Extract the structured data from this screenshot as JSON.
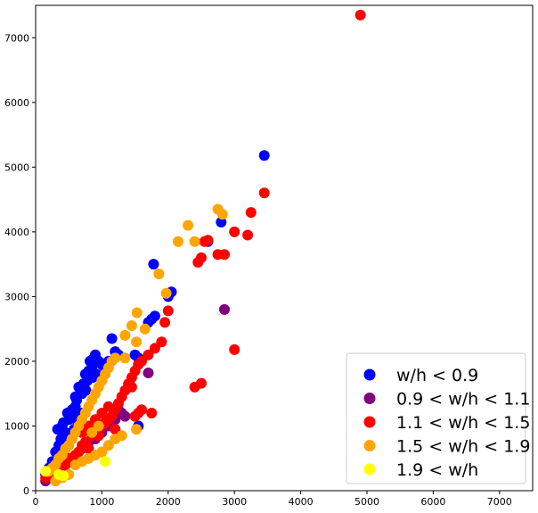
{
  "chart_data": {
    "type": "scatter",
    "title": "",
    "xlabel": "",
    "ylabel": "",
    "xlim": [
      0,
      7500
    ],
    "ylim": [
      0,
      7500
    ],
    "xticks": [
      0,
      1000,
      2000,
      3000,
      4000,
      5000,
      6000,
      7000
    ],
    "yticks": [
      0,
      1000,
      2000,
      3000,
      4000,
      5000,
      6000,
      7000
    ],
    "grid": false,
    "legend_position": "lower-right",
    "series": [
      {
        "name": "w/h < 0.9",
        "color": "#0000ff",
        "points": [
          [
            150,
            250
          ],
          [
            200,
            350
          ],
          [
            250,
            450
          ],
          [
            300,
            600
          ],
          [
            350,
            700
          ],
          [
            380,
            800
          ],
          [
            400,
            1000
          ],
          [
            450,
            900
          ],
          [
            480,
            1200
          ],
          [
            500,
            1100
          ],
          [
            550,
            1250
          ],
          [
            600,
            1300
          ],
          [
            620,
            1400
          ],
          [
            650,
            1600
          ],
          [
            700,
            1500
          ],
          [
            720,
            1650
          ],
          [
            750,
            1800
          ],
          [
            780,
            1700
          ],
          [
            800,
            1850
          ],
          [
            820,
            2000
          ],
          [
            850,
            1900
          ],
          [
            880,
            2050
          ],
          [
            900,
            2100
          ],
          [
            950,
            2000
          ],
          [
            1000,
            1950
          ],
          [
            1050,
            1900
          ],
          [
            1100,
            2000
          ],
          [
            1150,
            2350
          ],
          [
            1200,
            2150
          ],
          [
            1250,
            2100
          ],
          [
            1500,
            2100
          ],
          [
            1550,
            2050
          ],
          [
            1700,
            2600
          ],
          [
            1750,
            2650
          ],
          [
            1800,
            2700
          ],
          [
            1780,
            3500
          ],
          [
            2000,
            3000
          ],
          [
            2050,
            3070
          ],
          [
            2600,
            3850
          ],
          [
            2800,
            4150
          ],
          [
            3450,
            5180
          ],
          [
            1550,
            1000
          ],
          [
            250,
            250
          ],
          [
            330,
            950
          ],
          [
            420,
            1050
          ],
          [
            560,
            1150
          ],
          [
            680,
            1200
          ],
          [
            600,
            1450
          ],
          [
            760,
            1550
          ],
          [
            860,
            1750
          ],
          [
            920,
            1800
          ],
          [
            1000,
            1750
          ],
          [
            450,
            700
          ],
          [
            520,
            850
          ],
          [
            580,
            950
          ],
          [
            640,
            1050
          ]
        ]
      },
      {
        "name": "0.9 < w/h < 1.1",
        "color": "#800080",
        "points": [
          [
            150,
            150
          ],
          [
            300,
            300
          ],
          [
            500,
            450
          ],
          [
            700,
            650
          ],
          [
            800,
            750
          ],
          [
            900,
            800
          ],
          [
            1000,
            900
          ],
          [
            1100,
            1000
          ],
          [
            1200,
            1100
          ],
          [
            1250,
            1250
          ],
          [
            1300,
            1200
          ],
          [
            1350,
            1150
          ],
          [
            1700,
            1820
          ],
          [
            2850,
            2800
          ],
          [
            600,
            550
          ],
          [
            400,
            350
          ]
        ]
      },
      {
        "name": "1.1 < w/h < 1.5",
        "color": "#ff0000",
        "points": [
          [
            150,
            200
          ],
          [
            250,
            250
          ],
          [
            350,
            350
          ],
          [
            450,
            400
          ],
          [
            500,
            500
          ],
          [
            600,
            550
          ],
          [
            650,
            600
          ],
          [
            700,
            700
          ],
          [
            750,
            750
          ],
          [
            800,
            650
          ],
          [
            850,
            850
          ],
          [
            900,
            900
          ],
          [
            950,
            850
          ],
          [
            1000,
            1000
          ],
          [
            1050,
            1050
          ],
          [
            1100,
            1100
          ],
          [
            1150,
            1150
          ],
          [
            1200,
            1250
          ],
          [
            1250,
            1350
          ],
          [
            1300,
            1450
          ],
          [
            1350,
            1550
          ],
          [
            1400,
            1650
          ],
          [
            1450,
            1750
          ],
          [
            1500,
            1850
          ],
          [
            1550,
            1950
          ],
          [
            1600,
            2000
          ],
          [
            1700,
            2100
          ],
          [
            1800,
            2200
          ],
          [
            1900,
            2300
          ],
          [
            1950,
            2600
          ],
          [
            2000,
            2780
          ],
          [
            2450,
            3530
          ],
          [
            2500,
            3600
          ],
          [
            2550,
            3850
          ],
          [
            2600,
            3870
          ],
          [
            2750,
            3650
          ],
          [
            2850,
            3650
          ],
          [
            3000,
            4000
          ],
          [
            3200,
            3950
          ],
          [
            3250,
            4300
          ],
          [
            3450,
            4600
          ],
          [
            4900,
            7350
          ],
          [
            1450,
            1600
          ],
          [
            1500,
            1150
          ],
          [
            1550,
            1200
          ],
          [
            1600,
            1250
          ],
          [
            1750,
            1200
          ],
          [
            2400,
            1600
          ],
          [
            2500,
            1660
          ],
          [
            3000,
            2180
          ],
          [
            900,
            1100
          ],
          [
            1000,
            1200
          ],
          [
            1100,
            1300
          ],
          [
            800,
            1000
          ],
          [
            700,
            900
          ],
          [
            1200,
            950
          ]
        ]
      },
      {
        "name": "1.5 < w/h < 1.9",
        "color": "#ffa500",
        "points": [
          [
            200,
            300
          ],
          [
            250,
            350
          ],
          [
            300,
            400
          ],
          [
            350,
            500
          ],
          [
            400,
            550
          ],
          [
            450,
            650
          ],
          [
            500,
            700
          ],
          [
            550,
            800
          ],
          [
            600,
            900
          ],
          [
            650,
            1000
          ],
          [
            700,
            1100
          ],
          [
            750,
            1200
          ],
          [
            800,
            1300
          ],
          [
            850,
            1400
          ],
          [
            900,
            1500
          ],
          [
            950,
            1600
          ],
          [
            1000,
            1700
          ],
          [
            1050,
            1800
          ],
          [
            1100,
            1900
          ],
          [
            1150,
            2000
          ],
          [
            1200,
            2050
          ],
          [
            300,
            150
          ],
          [
            400,
            200
          ],
          [
            500,
            250
          ],
          [
            600,
            400
          ],
          [
            700,
            450
          ],
          [
            800,
            500
          ],
          [
            900,
            550
          ],
          [
            1000,
            600
          ],
          [
            1100,
            700
          ],
          [
            1200,
            800
          ],
          [
            1300,
            850
          ],
          [
            1350,
            2050
          ],
          [
            1350,
            2400
          ],
          [
            1450,
            2550
          ],
          [
            1520,
            2300
          ],
          [
            1530,
            2750
          ],
          [
            1650,
            2500
          ],
          [
            1860,
            3350
          ],
          [
            1970,
            3050
          ],
          [
            2150,
            3850
          ],
          [
            2300,
            4100
          ],
          [
            2400,
            3850
          ],
          [
            2750,
            4350
          ],
          [
            2820,
            4270
          ],
          [
            1520,
            950
          ],
          [
            950,
            1000
          ],
          [
            850,
            900
          ]
        ]
      },
      {
        "name": "1.9 < w/h",
        "color": "#ffff00",
        "points": [
          [
            150,
            300
          ],
          [
            350,
            250
          ],
          [
            420,
            230
          ],
          [
            1050,
            450
          ]
        ]
      }
    ]
  }
}
